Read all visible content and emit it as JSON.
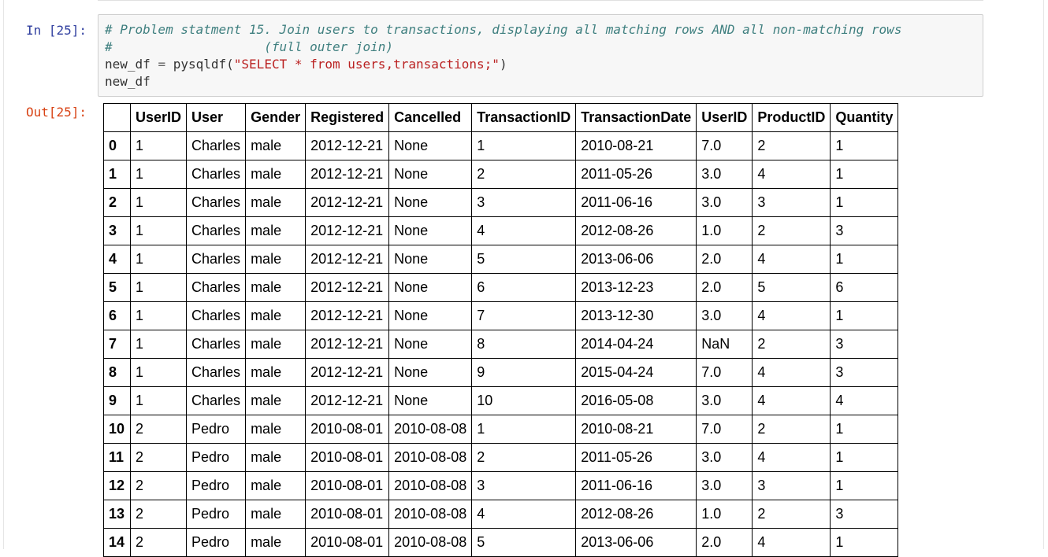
{
  "cell": {
    "input_prompt": "In [25]:",
    "output_prompt": "Out[25]:",
    "code_lines": [
      [
        {
          "cls": "c-comment",
          "text": "# Problem statment 15. Join users to transactions, displaying all matching rows AND all non-matching rows"
        }
      ],
      [
        {
          "cls": "c-comment",
          "text": "#                    (full outer join)"
        }
      ],
      [
        {
          "cls": "c-plain",
          "text": "new_df "
        },
        {
          "cls": "c-op",
          "text": "="
        },
        {
          "cls": "c-plain",
          "text": " pysqldf("
        },
        {
          "cls": "c-string",
          "text": "\"SELECT * from users,transactions;\""
        },
        {
          "cls": "c-plain",
          "text": ")"
        }
      ],
      [
        {
          "cls": "c-plain",
          "text": "new_df"
        }
      ]
    ]
  },
  "dataframe": {
    "columns": [
      "",
      "UserID",
      "User",
      "Gender",
      "Registered",
      "Cancelled",
      "TransactionID",
      "TransactionDate",
      "UserID",
      "ProductID",
      "Quantity"
    ],
    "rows": [
      {
        "index": "0",
        "values": [
          "1",
          "Charles",
          "male",
          "2012-12-21",
          "None",
          "1",
          "2010-08-21",
          "7.0",
          "2",
          "1"
        ]
      },
      {
        "index": "1",
        "values": [
          "1",
          "Charles",
          "male",
          "2012-12-21",
          "None",
          "2",
          "2011-05-26",
          "3.0",
          "4",
          "1"
        ]
      },
      {
        "index": "2",
        "values": [
          "1",
          "Charles",
          "male",
          "2012-12-21",
          "None",
          "3",
          "2011-06-16",
          "3.0",
          "3",
          "1"
        ]
      },
      {
        "index": "3",
        "values": [
          "1",
          "Charles",
          "male",
          "2012-12-21",
          "None",
          "4",
          "2012-08-26",
          "1.0",
          "2",
          "3"
        ]
      },
      {
        "index": "4",
        "values": [
          "1",
          "Charles",
          "male",
          "2012-12-21",
          "None",
          "5",
          "2013-06-06",
          "2.0",
          "4",
          "1"
        ]
      },
      {
        "index": "5",
        "values": [
          "1",
          "Charles",
          "male",
          "2012-12-21",
          "None",
          "6",
          "2013-12-23",
          "2.0",
          "5",
          "6"
        ]
      },
      {
        "index": "6",
        "values": [
          "1",
          "Charles",
          "male",
          "2012-12-21",
          "None",
          "7",
          "2013-12-30",
          "3.0",
          "4",
          "1"
        ]
      },
      {
        "index": "7",
        "values": [
          "1",
          "Charles",
          "male",
          "2012-12-21",
          "None",
          "8",
          "2014-04-24",
          "NaN",
          "2",
          "3"
        ]
      },
      {
        "index": "8",
        "values": [
          "1",
          "Charles",
          "male",
          "2012-12-21",
          "None",
          "9",
          "2015-04-24",
          "7.0",
          "4",
          "3"
        ]
      },
      {
        "index": "9",
        "values": [
          "1",
          "Charles",
          "male",
          "2012-12-21",
          "None",
          "10",
          "2016-05-08",
          "3.0",
          "4",
          "4"
        ]
      },
      {
        "index": "10",
        "values": [
          "2",
          "Pedro",
          "male",
          "2010-08-01",
          "2010-08-08",
          "1",
          "2010-08-21",
          "7.0",
          "2",
          "1"
        ]
      },
      {
        "index": "11",
        "values": [
          "2",
          "Pedro",
          "male",
          "2010-08-01",
          "2010-08-08",
          "2",
          "2011-05-26",
          "3.0",
          "4",
          "1"
        ]
      },
      {
        "index": "12",
        "values": [
          "2",
          "Pedro",
          "male",
          "2010-08-01",
          "2010-08-08",
          "3",
          "2011-06-16",
          "3.0",
          "3",
          "1"
        ]
      },
      {
        "index": "13",
        "values": [
          "2",
          "Pedro",
          "male",
          "2010-08-01",
          "2010-08-08",
          "4",
          "2012-08-26",
          "1.0",
          "2",
          "3"
        ]
      },
      {
        "index": "14",
        "values": [
          "2",
          "Pedro",
          "male",
          "2010-08-01",
          "2010-08-08",
          "5",
          "2013-06-06",
          "2.0",
          "4",
          "1"
        ]
      }
    ]
  }
}
